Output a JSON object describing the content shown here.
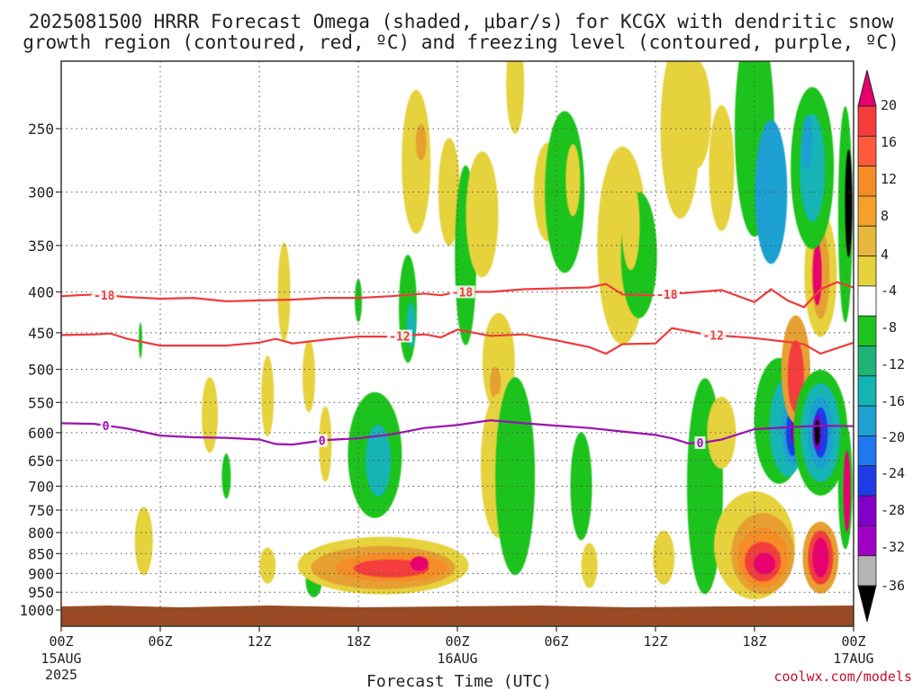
{
  "title_lines": [
    "2025081500 HRRR Forecast Omega (shaded, μbar/s) for KCGX with dendritic snow",
    "growth region (contoured, red, ºC) and freezing level (contoured, purple, ºC)"
  ],
  "xlabel": "Forecast Time (UTC)",
  "credit": "coolwx.com/models",
  "chart_data": {
    "type": "heatmap",
    "x_range_hours": [
      0,
      48
    ],
    "y_axis": "pressure_hPa_log",
    "y_range": [
      1050,
      200
    ],
    "grid": "dotted",
    "x_ticks": [
      {
        "hour": 0,
        "label": "00Z",
        "sub": [
          "15AUG",
          "2025"
        ]
      },
      {
        "hour": 6,
        "label": "06Z",
        "sub": []
      },
      {
        "hour": 12,
        "label": "12Z",
        "sub": []
      },
      {
        "hour": 18,
        "label": "18Z",
        "sub": []
      },
      {
        "hour": 24,
        "label": "00Z",
        "sub": [
          "16AUG"
        ]
      },
      {
        "hour": 30,
        "label": "06Z",
        "sub": []
      },
      {
        "hour": 36,
        "label": "12Z",
        "sub": []
      },
      {
        "hour": 42,
        "label": "18Z",
        "sub": []
      },
      {
        "hour": 48,
        "label": "00Z",
        "sub": [
          "17AUG"
        ]
      }
    ],
    "y_ticks": [
      250,
      300,
      350,
      400,
      450,
      500,
      550,
      600,
      650,
      700,
      750,
      800,
      850,
      900,
      950,
      1000
    ],
    "colorbar": {
      "labels": [
        "20",
        "16",
        "12",
        "8",
        "4",
        "-4",
        "-8",
        "-12",
        "-16",
        "-20",
        "-24",
        "-28",
        "-32",
        "-36"
      ],
      "colors": [
        "#e8006e",
        "#f43c3c",
        "#ff5a3c",
        "#f58c28",
        "#f5a028",
        "#e6b83c",
        "#e6d23c",
        "#ffffff",
        "#1ec31e",
        "#1eb478",
        "#14b4b4",
        "#1ea0d2",
        "#1e78f0",
        "#1e3ce6",
        "#8200c8",
        "#a000c8",
        "#b4b4b4",
        "#000000"
      ]
    },
    "series": [
      {
        "kind": "contour",
        "value": -18,
        "color": "#ef3a3a",
        "points": [
          [
            0,
            405
          ],
          [
            1,
            404
          ],
          [
            2,
            403
          ],
          [
            4,
            406
          ],
          [
            6,
            408
          ],
          [
            8,
            407
          ],
          [
            10,
            411
          ],
          [
            12,
            410
          ],
          [
            14,
            409
          ],
          [
            16,
            407
          ],
          [
            18,
            407
          ],
          [
            20,
            405
          ],
          [
            22,
            402
          ],
          [
            23,
            404
          ],
          [
            24,
            400
          ],
          [
            26,
            400
          ],
          [
            28,
            397
          ],
          [
            30,
            396
          ],
          [
            32,
            395
          ],
          [
            33,
            391
          ],
          [
            34,
            403
          ],
          [
            36,
            404
          ],
          [
            38,
            401
          ],
          [
            40,
            398
          ],
          [
            42,
            412
          ],
          [
            43,
            397
          ],
          [
            44,
            410
          ],
          [
            45,
            418
          ],
          [
            46,
            397
          ],
          [
            47,
            389
          ],
          [
            48,
            395
          ]
        ],
        "labels_at_hours": [
          2.6,
          24.3,
          36.7
        ]
      },
      {
        "kind": "contour",
        "value": -12,
        "color": "#ef3a3a",
        "points": [
          [
            0,
            453
          ],
          [
            2,
            452
          ],
          [
            3,
            451
          ],
          [
            4,
            458
          ],
          [
            6,
            467
          ],
          [
            8,
            467
          ],
          [
            10,
            467
          ],
          [
            12,
            463
          ],
          [
            13,
            458
          ],
          [
            14,
            464
          ],
          [
            16,
            459
          ],
          [
            18,
            455
          ],
          [
            20,
            455
          ],
          [
            22,
            452
          ],
          [
            23,
            456
          ],
          [
            24,
            446
          ],
          [
            26,
            454
          ],
          [
            28,
            452
          ],
          [
            30,
            460
          ],
          [
            32,
            469
          ],
          [
            33,
            478
          ],
          [
            34,
            465
          ],
          [
            36,
            464
          ],
          [
            37,
            444
          ],
          [
            39,
            452
          ],
          [
            42,
            457
          ],
          [
            44,
            462
          ],
          [
            45,
            465
          ],
          [
            46,
            478
          ],
          [
            48,
            463
          ]
        ],
        "labels_at_hours": [
          20.5,
          39.5
        ]
      },
      {
        "kind": "contour",
        "value": 0,
        "color": "#9a11b0",
        "points": [
          [
            0,
            584
          ],
          [
            2,
            585
          ],
          [
            4,
            593
          ],
          [
            6,
            605
          ],
          [
            8,
            608
          ],
          [
            10,
            609
          ],
          [
            12,
            612
          ],
          [
            13,
            620
          ],
          [
            14,
            621
          ],
          [
            16,
            613
          ],
          [
            18,
            610
          ],
          [
            20,
            603
          ],
          [
            22,
            592
          ],
          [
            24,
            587
          ],
          [
            26,
            579
          ],
          [
            28,
            584
          ],
          [
            30,
            588
          ],
          [
            32,
            592
          ],
          [
            34,
            598
          ],
          [
            36,
            604
          ],
          [
            37,
            610
          ],
          [
            38,
            619
          ],
          [
            39,
            617
          ],
          [
            40,
            612
          ],
          [
            42,
            594
          ],
          [
            44,
            591
          ],
          [
            46,
            588
          ],
          [
            48,
            589
          ]
        ],
        "labels_at_hours": [
          2.7,
          15.8,
          38.7
        ]
      }
    ]
  }
}
